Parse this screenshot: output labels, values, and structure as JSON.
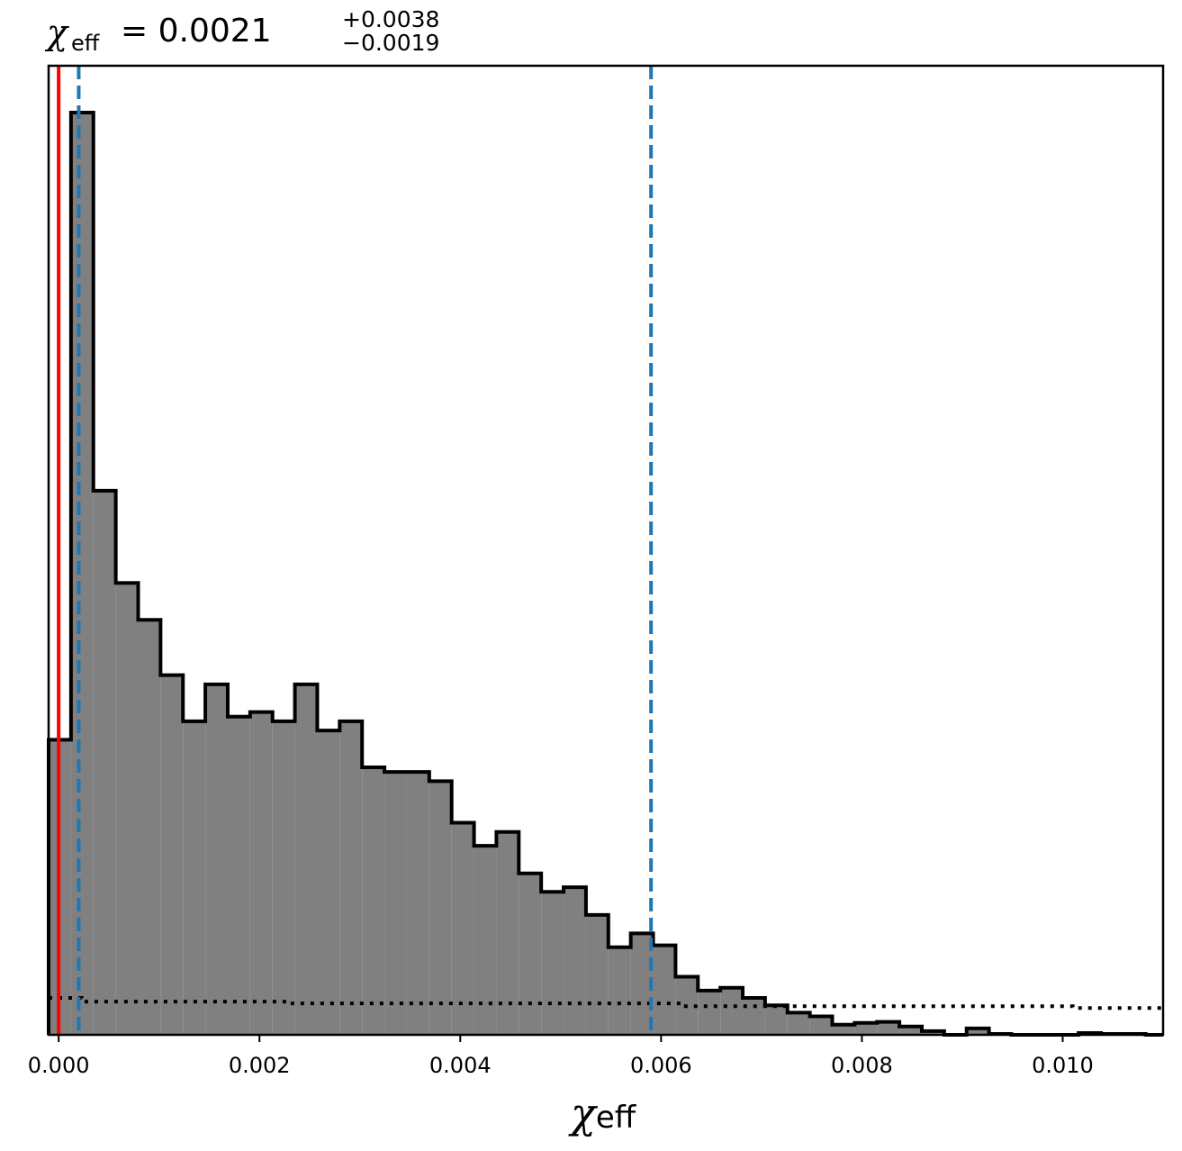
{
  "chart_data": {
    "type": "histogram",
    "title": {
      "symbol": "χ",
      "symbol_subscript": "eff",
      "value_text": "= 0.0021",
      "upper_error": "+0.0038",
      "lower_error": "−0.0019"
    },
    "xlabel": {
      "symbol": "χ",
      "subscript": "eff"
    },
    "ylabel": "",
    "xlim": [
      -0.0001,
      0.011
    ],
    "ylim": [
      0,
      1.0
    ],
    "y_ticks_shown": false,
    "grid": false,
    "x_ticks": [
      0.0,
      0.002,
      0.004,
      0.006,
      0.008,
      0.01
    ],
    "x_tick_labels": [
      "0.000",
      "0.002",
      "0.004",
      "0.006",
      "0.008",
      "0.010"
    ],
    "histogram": {
      "fill_color": "#808080",
      "edge_color": "#000000",
      "bin_start": -0.0001,
      "bin_width": 0.000223,
      "heights": [
        0.32,
        1.0,
        0.59,
        0.49,
        0.45,
        0.39,
        0.34,
        0.38,
        0.345,
        0.35,
        0.34,
        0.38,
        0.33,
        0.34,
        0.29,
        0.285,
        0.285,
        0.275,
        0.23,
        0.205,
        0.22,
        0.175,
        0.155,
        0.16,
        0.13,
        0.095,
        0.11,
        0.097,
        0.063,
        0.048,
        0.051,
        0.04,
        0.032,
        0.024,
        0.02,
        0.011,
        0.013,
        0.014,
        0.009,
        0.004,
        0.0,
        0.007,
        0.001,
        0.0,
        0.0,
        0.0,
        0.002,
        0.001,
        0.001,
        0.0,
        0.002
      ]
    },
    "prior": {
      "style": "dotted",
      "color": "#000000",
      "x": [
        -0.0001,
        0.00023,
        0.00023,
        0.0023,
        0.0023,
        0.0062,
        0.0062,
        0.0101,
        0.0101,
        0.011
      ],
      "y": [
        0.04,
        0.04,
        0.036,
        0.036,
        0.034,
        0.034,
        0.031,
        0.031,
        0.029,
        0.029
      ]
    },
    "vlines": [
      {
        "x": 0.0,
        "color": "#ff0000",
        "style": "solid"
      },
      {
        "x": 0.0002,
        "color": "#1f77b4",
        "style": "dashed"
      },
      {
        "x": 0.0059,
        "color": "#1f77b4",
        "style": "dashed"
      }
    ]
  }
}
